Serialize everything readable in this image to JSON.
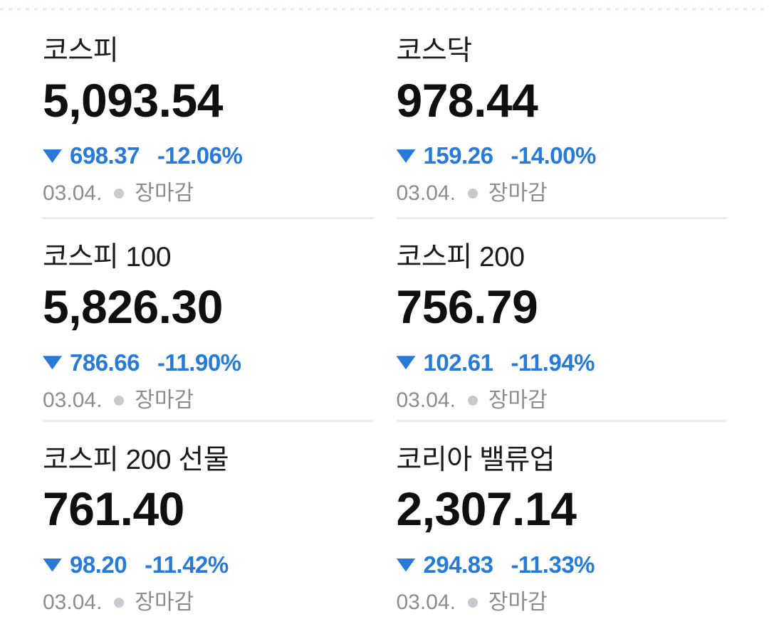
{
  "colors": {
    "bg": "#ffffff",
    "title": "#1b1b1b",
    "value": "#0f0f0f",
    "down": "#287ad9",
    "muted": "#8c8c8c",
    "dot": "#c7cbd1",
    "divider": "#ededed"
  },
  "icons": {
    "down_triangle": "down-triangle",
    "status_dot": "status-dot"
  },
  "cards": [
    {
      "name": "코스피",
      "value": "5,093.54",
      "direction": "down",
      "change": "698.37",
      "change_pct": "-12.06%",
      "date": "03.04.",
      "status": "장마감"
    },
    {
      "name": "코스닥",
      "value": "978.44",
      "direction": "down",
      "change": "159.26",
      "change_pct": "-14.00%",
      "date": "03.04.",
      "status": "장마감"
    },
    {
      "name": "코스피 100",
      "value": "5,826.30",
      "direction": "down",
      "change": "786.66",
      "change_pct": "-11.90%",
      "date": "03.04.",
      "status": "장마감"
    },
    {
      "name": "코스피 200",
      "value": "756.79",
      "direction": "down",
      "change": "102.61",
      "change_pct": "-11.94%",
      "date": "03.04.",
      "status": "장마감"
    },
    {
      "name": "코스피 200 선물",
      "value": "761.40",
      "direction": "down",
      "change": "98.20",
      "change_pct": "-11.42%",
      "date": "03.04.",
      "status": "장마감"
    },
    {
      "name": "코리아 밸류업",
      "value": "2,307.14",
      "direction": "down",
      "change": "294.83",
      "change_pct": "-11.33%",
      "date": "03.04.",
      "status": "장마감"
    }
  ]
}
